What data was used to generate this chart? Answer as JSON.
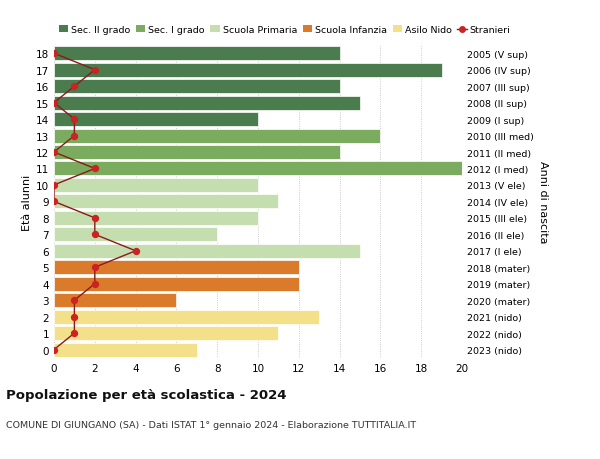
{
  "ages": [
    18,
    17,
    16,
    15,
    14,
    13,
    12,
    11,
    10,
    9,
    8,
    7,
    6,
    5,
    4,
    3,
    2,
    1,
    0
  ],
  "bar_values": [
    14,
    19,
    14,
    15,
    10,
    16,
    14,
    20,
    10,
    11,
    10,
    8,
    15,
    12,
    12,
    6,
    13,
    11,
    7
  ],
  "stranieri": [
    0,
    2,
    1,
    0,
    1,
    1,
    0,
    2,
    0,
    0,
    2,
    2,
    4,
    2,
    2,
    1,
    1,
    1,
    0
  ],
  "right_labels": [
    "2005 (V sup)",
    "2006 (IV sup)",
    "2007 (III sup)",
    "2008 (II sup)",
    "2009 (I sup)",
    "2010 (III med)",
    "2011 (II med)",
    "2012 (I med)",
    "2013 (V ele)",
    "2014 (IV ele)",
    "2015 (III ele)",
    "2016 (II ele)",
    "2017 (I ele)",
    "2018 (mater)",
    "2019 (mater)",
    "2020 (mater)",
    "2021 (nido)",
    "2022 (nido)",
    "2023 (nido)"
  ],
  "bar_colors": [
    "#4a7c4e",
    "#4a7c4e",
    "#4a7c4e",
    "#4a7c4e",
    "#4a7c4e",
    "#7aab5e",
    "#7aab5e",
    "#7aab5e",
    "#c5deb0",
    "#c5deb0",
    "#c5deb0",
    "#c5deb0",
    "#c5deb0",
    "#d97b2a",
    "#d97b2a",
    "#d97b2a",
    "#f5e08a",
    "#f5e08a",
    "#f5e08a"
  ],
  "legend_labels": [
    "Sec. II grado",
    "Sec. I grado",
    "Scuola Primaria",
    "Scuola Infanzia",
    "Asilo Nido",
    "Stranieri"
  ],
  "legend_colors": [
    "#4a7c4e",
    "#7aab5e",
    "#c5deb0",
    "#d97b2a",
    "#f5e08a",
    "#cc2222"
  ],
  "ylabel_right": "Anni di nascita",
  "xlim": [
    0,
    20
  ],
  "xticks": [
    0,
    2,
    4,
    6,
    8,
    10,
    12,
    14,
    16,
    18,
    20
  ],
  "title_main": "Popolazione per età scolastica - 2024",
  "title_sub": "COMUNE DI GIUNGANO (SA) - Dati ISTAT 1° gennaio 2024 - Elaborazione TUTTITALIA.IT",
  "bg_color": "#ffffff",
  "stranieri_line_color": "#8b1a1a",
  "stranieri_dot_color": "#cc2222"
}
